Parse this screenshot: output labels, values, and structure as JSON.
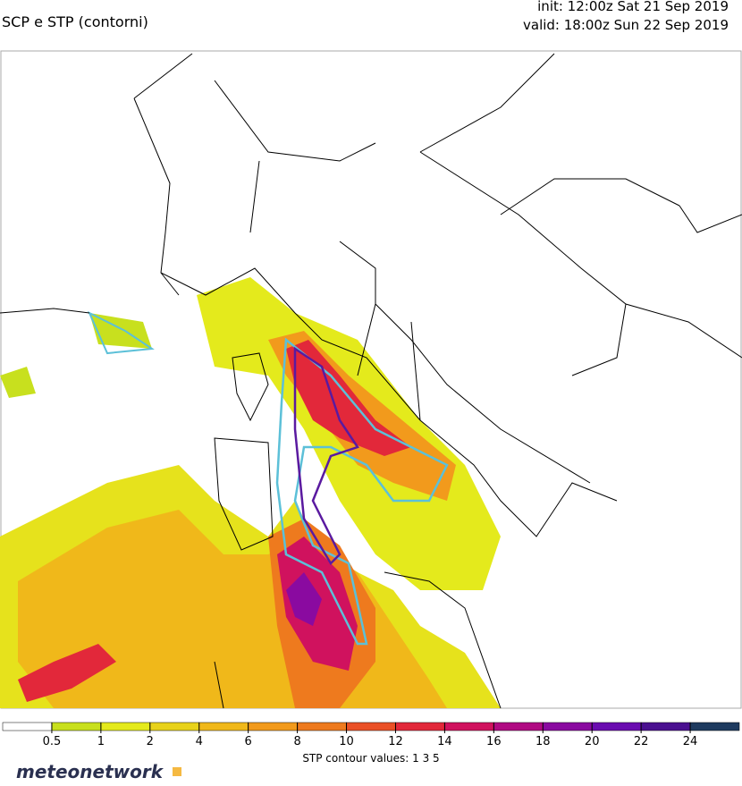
{
  "header": {
    "title": "SCP e STP (contorni)",
    "init": "init: 12:00z Sat 21 Sep 2019",
    "valid": "valid: 18:00z Sun 22 Sep 2019"
  },
  "colorbar": {
    "ticks": [
      0.5,
      1,
      2,
      4,
      6,
      8,
      10,
      12,
      14,
      16,
      18,
      20,
      22,
      24
    ],
    "colors": [
      "#ffffff",
      "#c8e01e",
      "#e4ea1c",
      "#e8d21a",
      "#f0b81a",
      "#f29a1c",
      "#ee7a1e",
      "#ea5026",
      "#e2283a",
      "#d0125e",
      "#b00a82",
      "#8a0aa0",
      "#6a0cb0",
      "#4a1090",
      "#1e3a5f"
    ]
  },
  "footer": {
    "note": "STP contour values: 1 3 5",
    "logo": "meteonetwork"
  }
}
